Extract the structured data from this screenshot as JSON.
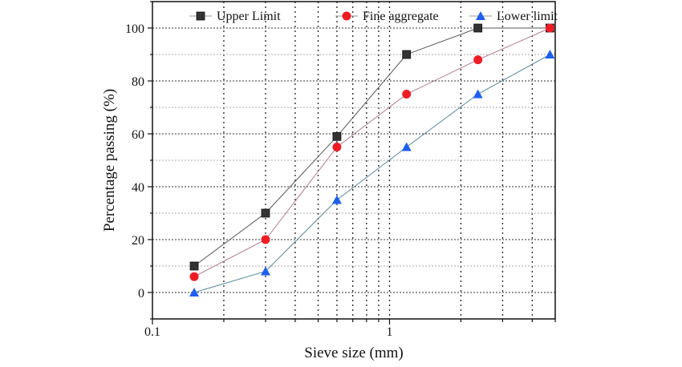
{
  "chart_data": {
    "type": "line",
    "title": "",
    "xlabel": "Sieve size (mm)",
    "ylabel": "Percentage passing (%)",
    "xscale": "log",
    "xlim": [
      0.1,
      5
    ],
    "ylim": [
      -10,
      110
    ],
    "xticks": [
      {
        "value": 0.1,
        "label": "0.1"
      },
      {
        "value": 1,
        "label": "1"
      }
    ],
    "yticks": [
      0,
      20,
      40,
      60,
      80,
      100
    ],
    "grid": true,
    "legend": "top",
    "x": [
      0.15,
      0.3,
      0.6,
      1.18,
      2.36,
      4.75
    ],
    "series": [
      {
        "name": "Upper Limit",
        "marker": "square",
        "color": "#333333",
        "line_color": "#555555",
        "values": [
          10,
          30,
          59,
          90,
          100,
          100
        ]
      },
      {
        "name": "Fine aggregate",
        "marker": "circle",
        "color": "#ee1c24",
        "line_color": "#b07a90",
        "values": [
          6,
          20,
          55,
          75,
          88,
          100
        ]
      },
      {
        "name": "Lower limit",
        "marker": "triangle",
        "color": "#1e5ff0",
        "line_color": "#5a8a9a",
        "values": [
          0,
          8,
          35,
          55,
          75,
          90
        ]
      }
    ]
  }
}
